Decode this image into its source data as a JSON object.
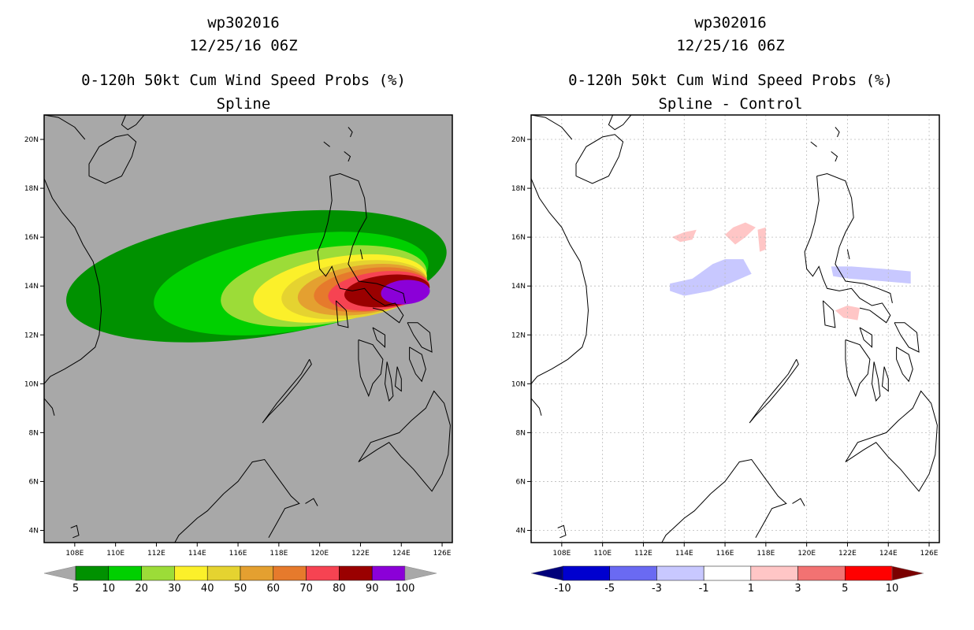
{
  "chart_data": [
    {
      "type": "heatmap",
      "storm_id": "wp302016",
      "date": "12/25/16 06Z",
      "title": "0-120h 50kt Cum Wind Speed Probs (%)",
      "subtitle": "Spline",
      "xlim": [
        106.5,
        126.5
      ],
      "ylim": [
        3.5,
        21
      ],
      "x_ticks": [
        "108E",
        "110E",
        "112E",
        "114E",
        "116E",
        "118E",
        "120E",
        "122E",
        "124E",
        "126E"
      ],
      "y_ticks": [
        "4N",
        "6N",
        "8N",
        "10N",
        "12N",
        "14N",
        "16N",
        "18N",
        "20N"
      ],
      "x_tick_values": [
        108,
        110,
        112,
        114,
        116,
        118,
        120,
        122,
        124,
        126
      ],
      "y_tick_values": [
        4,
        6,
        8,
        10,
        12,
        14,
        16,
        18,
        20
      ],
      "grid": false,
      "background": "#a8a8a8",
      "colorbar": {
        "levels": [
          "5",
          "10",
          "20",
          "30",
          "40",
          "50",
          "60",
          "70",
          "80",
          "90",
          "100"
        ],
        "colors": [
          "#009100",
          "#00d000",
          "#9cdc38",
          "#fbf02a",
          "#e5d330",
          "#e4a030",
          "#e67a2c",
          "#f64352",
          "#9a0000",
          "#8b00d8"
        ],
        "below_color": "#a8a8a8",
        "above_color": "#a8a8a8"
      },
      "prob_field": [
        {
          "level": 5,
          "center": [
            116.9,
            14.4
          ],
          "rx": 9.4,
          "ry": 2.5,
          "rot": -8
        },
        {
          "level": 10,
          "center": [
            118.6,
            14.1
          ],
          "rx": 6.8,
          "ry": 1.95,
          "rot": -9
        },
        {
          "level": 20,
          "center": [
            120.2,
            14.0
          ],
          "rx": 5.1,
          "ry": 1.55,
          "rot": -9
        },
        {
          "level": 30,
          "center": [
            121.0,
            13.9
          ],
          "rx": 4.3,
          "ry": 1.3,
          "rot": -9
        },
        {
          "level": 40,
          "center": [
            121.7,
            13.85
          ],
          "rx": 3.6,
          "ry": 1.15,
          "rot": -8
        },
        {
          "level": 50,
          "center": [
            122.1,
            13.85
          ],
          "rx": 3.2,
          "ry": 1.0,
          "rot": -8
        },
        {
          "level": 60,
          "center": [
            122.5,
            13.85
          ],
          "rx": 2.8,
          "ry": 0.88,
          "rot": -7
        },
        {
          "level": 70,
          "center": [
            122.9,
            13.8
          ],
          "rx": 2.5,
          "ry": 0.78,
          "rot": -7
        },
        {
          "level": 80,
          "center": [
            123.3,
            13.8
          ],
          "rx": 2.1,
          "ry": 0.65,
          "rot": -6
        },
        {
          "level": 90,
          "center": [
            124.2,
            13.75
          ],
          "rx": 1.2,
          "ry": 0.5,
          "rot": -4
        }
      ]
    },
    {
      "type": "heatmap",
      "storm_id": "wp302016",
      "date": "12/25/16 06Z",
      "title": "0-120h 50kt Cum Wind Speed Probs (%)",
      "subtitle": "Spline - Control",
      "xlim": [
        106.5,
        126.5
      ],
      "ylim": [
        3.5,
        21
      ],
      "x_ticks": [
        "108E",
        "110E",
        "112E",
        "114E",
        "116E",
        "118E",
        "120E",
        "122E",
        "124E",
        "126E"
      ],
      "y_ticks": [
        "4N",
        "6N",
        "8N",
        "10N",
        "12N",
        "14N",
        "16N",
        "18N",
        "20N"
      ],
      "x_tick_values": [
        108,
        110,
        112,
        114,
        116,
        118,
        120,
        122,
        124,
        126
      ],
      "y_tick_values": [
        4,
        6,
        8,
        10,
        12,
        14,
        16,
        18,
        20
      ],
      "grid": true,
      "background": "#ffffff",
      "colorbar": {
        "levels": [
          "-10",
          "-5",
          "-3",
          "-1",
          "1",
          "3",
          "5",
          "10"
        ],
        "colors": [
          "#0000cf",
          "#6a6af2",
          "#c8c8ff",
          "#ffffff",
          "#ffc6c6",
          "#f27272",
          "#ff0000"
        ],
        "below_color": "#00007a",
        "above_color": "#7a0000"
      },
      "diff_patches": [
        {
          "color": "#c8c8ff",
          "pts": [
            [
              113.3,
              14.1
            ],
            [
              114.4,
              14.3
            ],
            [
              115.4,
              14.9
            ],
            [
              116.0,
              15.1
            ],
            [
              116.9,
              15.1
            ],
            [
              117.3,
              14.5
            ],
            [
              116.2,
              14.1
            ],
            [
              115.3,
              13.8
            ],
            [
              114.0,
              13.6
            ],
            [
              113.3,
              13.8
            ]
          ]
        },
        {
          "color": "#c8c8ff",
          "pts": [
            [
              121.2,
              14.8
            ],
            [
              122.2,
              14.8
            ],
            [
              123.8,
              14.7
            ],
            [
              125.1,
              14.6
            ],
            [
              125.1,
              14.1
            ],
            [
              123.7,
              14.2
            ],
            [
              122.1,
              14.3
            ],
            [
              121.3,
              14.4
            ]
          ]
        },
        {
          "color": "#ffc6c6",
          "pts": [
            [
              116.0,
              16.1
            ],
            [
              116.4,
              16.4
            ],
            [
              117.0,
              16.6
            ],
            [
              117.5,
              16.4
            ],
            [
              117.0,
              16.0
            ],
            [
              116.5,
              15.7
            ]
          ]
        },
        {
          "color": "#ffc6c6",
          "pts": [
            [
              113.4,
              16.0
            ],
            [
              114.0,
              16.2
            ],
            [
              114.6,
              16.3
            ],
            [
              114.4,
              15.9
            ],
            [
              113.8,
              15.8
            ]
          ]
        },
        {
          "color": "#ffc6c6",
          "pts": [
            [
              117.6,
              16.3
            ],
            [
              118.0,
              16.4
            ],
            [
              118.0,
              15.5
            ],
            [
              117.7,
              15.4
            ]
          ]
        },
        {
          "color": "#ffc6c6",
          "pts": [
            [
              121.4,
              13.0
            ],
            [
              122.0,
              13.2
            ],
            [
              122.6,
              13.1
            ],
            [
              122.5,
              12.6
            ],
            [
              121.8,
              12.7
            ]
          ]
        }
      ]
    }
  ]
}
